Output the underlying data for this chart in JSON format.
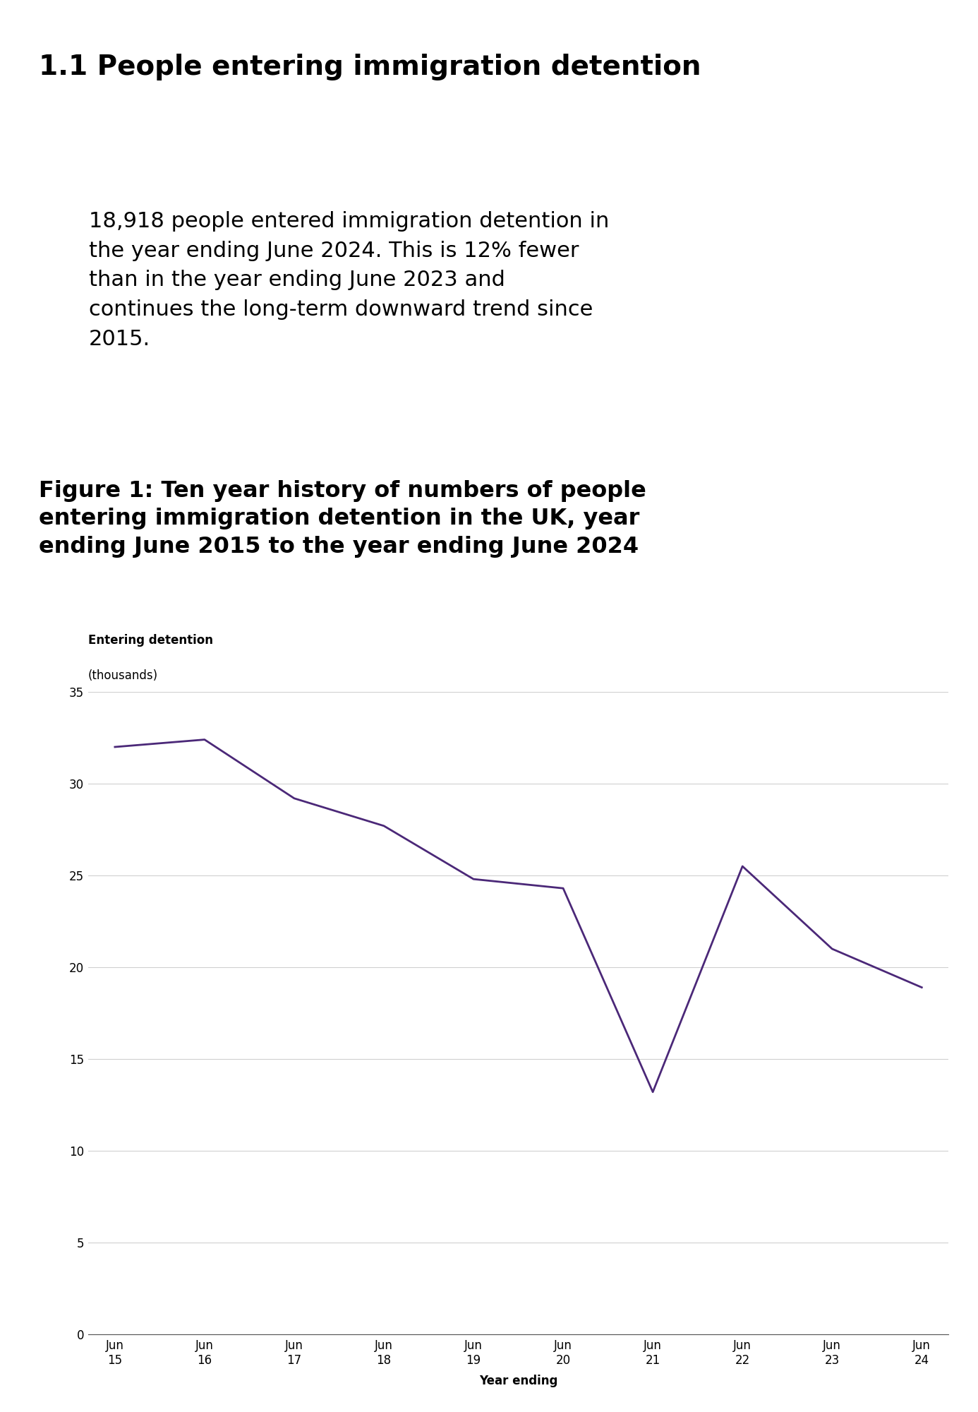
{
  "main_title": "1.1 People entering immigration detention",
  "summary_text": "18,918 people entered immigration detention in\nthe year ending June 2024. This is 12% fewer\nthan in the year ending June 2023 and\ncontinues the long-term downward trend since\n2015.",
  "figure_title": "Figure 1: Ten year history of numbers of people\nentering immigration detention in the UK, year\nending June 2015 to the year ending June 2024",
  "ylabel_line1": "Entering detention",
  "ylabel_line2": "(thousands)",
  "xlabel": "Year ending",
  "x_labels": [
    "Jun\n15",
    "Jun\n16",
    "Jun\n17",
    "Jun\n18",
    "Jun\n19",
    "Jun\n20",
    "Jun\n21",
    "Jun\n22",
    "Jun\n23",
    "Jun\n24"
  ],
  "y_values": [
    32.0,
    32.4,
    29.2,
    27.7,
    24.8,
    24.3,
    13.2,
    25.5,
    21.0,
    18.9
  ],
  "line_color": "#4b2878",
  "line_width": 2.0,
  "ylim": [
    0,
    35
  ],
  "yticks": [
    0,
    5,
    10,
    15,
    20,
    25,
    30,
    35
  ],
  "background_color": "#ffffff",
  "summary_bg_color": "#efefef",
  "grid_color": "#d0d0d0",
  "title_fontsize": 28,
  "figure_title_fontsize": 23,
  "summary_fontsize": 22,
  "axis_label_fontsize": 12,
  "tick_fontsize": 12
}
